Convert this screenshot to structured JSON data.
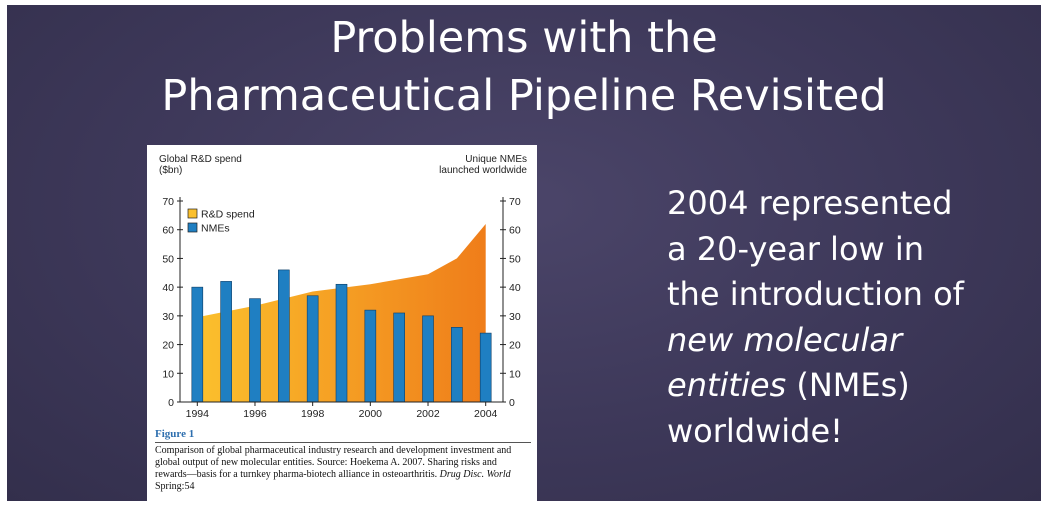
{
  "slide": {
    "title_line1": "Problems with the",
    "title_line2": "Pharmaceutical Pipeline Revisited",
    "body": {
      "line1": "2004 represented",
      "line2": "a 20-year low in",
      "line3": "the introduction of",
      "line4_italic": "new molecular",
      "line5_italic": "entities",
      "line5_rest": " (NMEs)",
      "line6": "worldwide!"
    },
    "figure": {
      "label": "Figure 1",
      "caption_parts": [
        {
          "text": "Comparison of global pharmaceutical industry research and development investment and global output of new molecular entities. Source: Hoekema A. 2007. Sharing risks and rewards—basis for a turnkey pharma-biotech alliance in osteoarthritis. ",
          "italic": false
        },
        {
          "text": "Drug Disc. World",
          "italic": true
        },
        {
          "text": " Spring:54",
          "italic": false
        }
      ]
    }
  },
  "chart_data": {
    "type": "bar",
    "left_axis_title": [
      "Global R&D spend",
      "($bn)"
    ],
    "right_axis_title": [
      "Unique NMEs",
      "launched worldwide"
    ],
    "xlim": [
      1993.4,
      2004.6
    ],
    "ylim": [
      0,
      70
    ],
    "y_ticks": [
      0,
      10,
      20,
      30,
      40,
      50,
      60,
      70
    ],
    "x_ticks": [
      1994,
      1996,
      1998,
      2000,
      2002,
      2004
    ],
    "legend_position": "top-left",
    "series": [
      {
        "name": "R&D spend",
        "kind": "area",
        "axis": "left",
        "color": "#fbc02d",
        "color_end": "#ef7d1a",
        "x": [
          1994,
          1996,
          1998,
          2000,
          2002,
          2003,
          2004
        ],
        "values": [
          29.5,
          33.5,
          38.5,
          41,
          44.5,
          50,
          62
        ]
      },
      {
        "name": "NMEs",
        "kind": "bar",
        "axis": "right",
        "color": "#1f7fc2",
        "x": [
          1994,
          1995,
          1996,
          1997,
          1998,
          1999,
          2000,
          2001,
          2002,
          2003,
          2004
        ],
        "values": [
          40,
          42,
          36,
          46,
          37,
          41,
          32,
          31,
          30,
          26,
          24
        ]
      }
    ]
  }
}
